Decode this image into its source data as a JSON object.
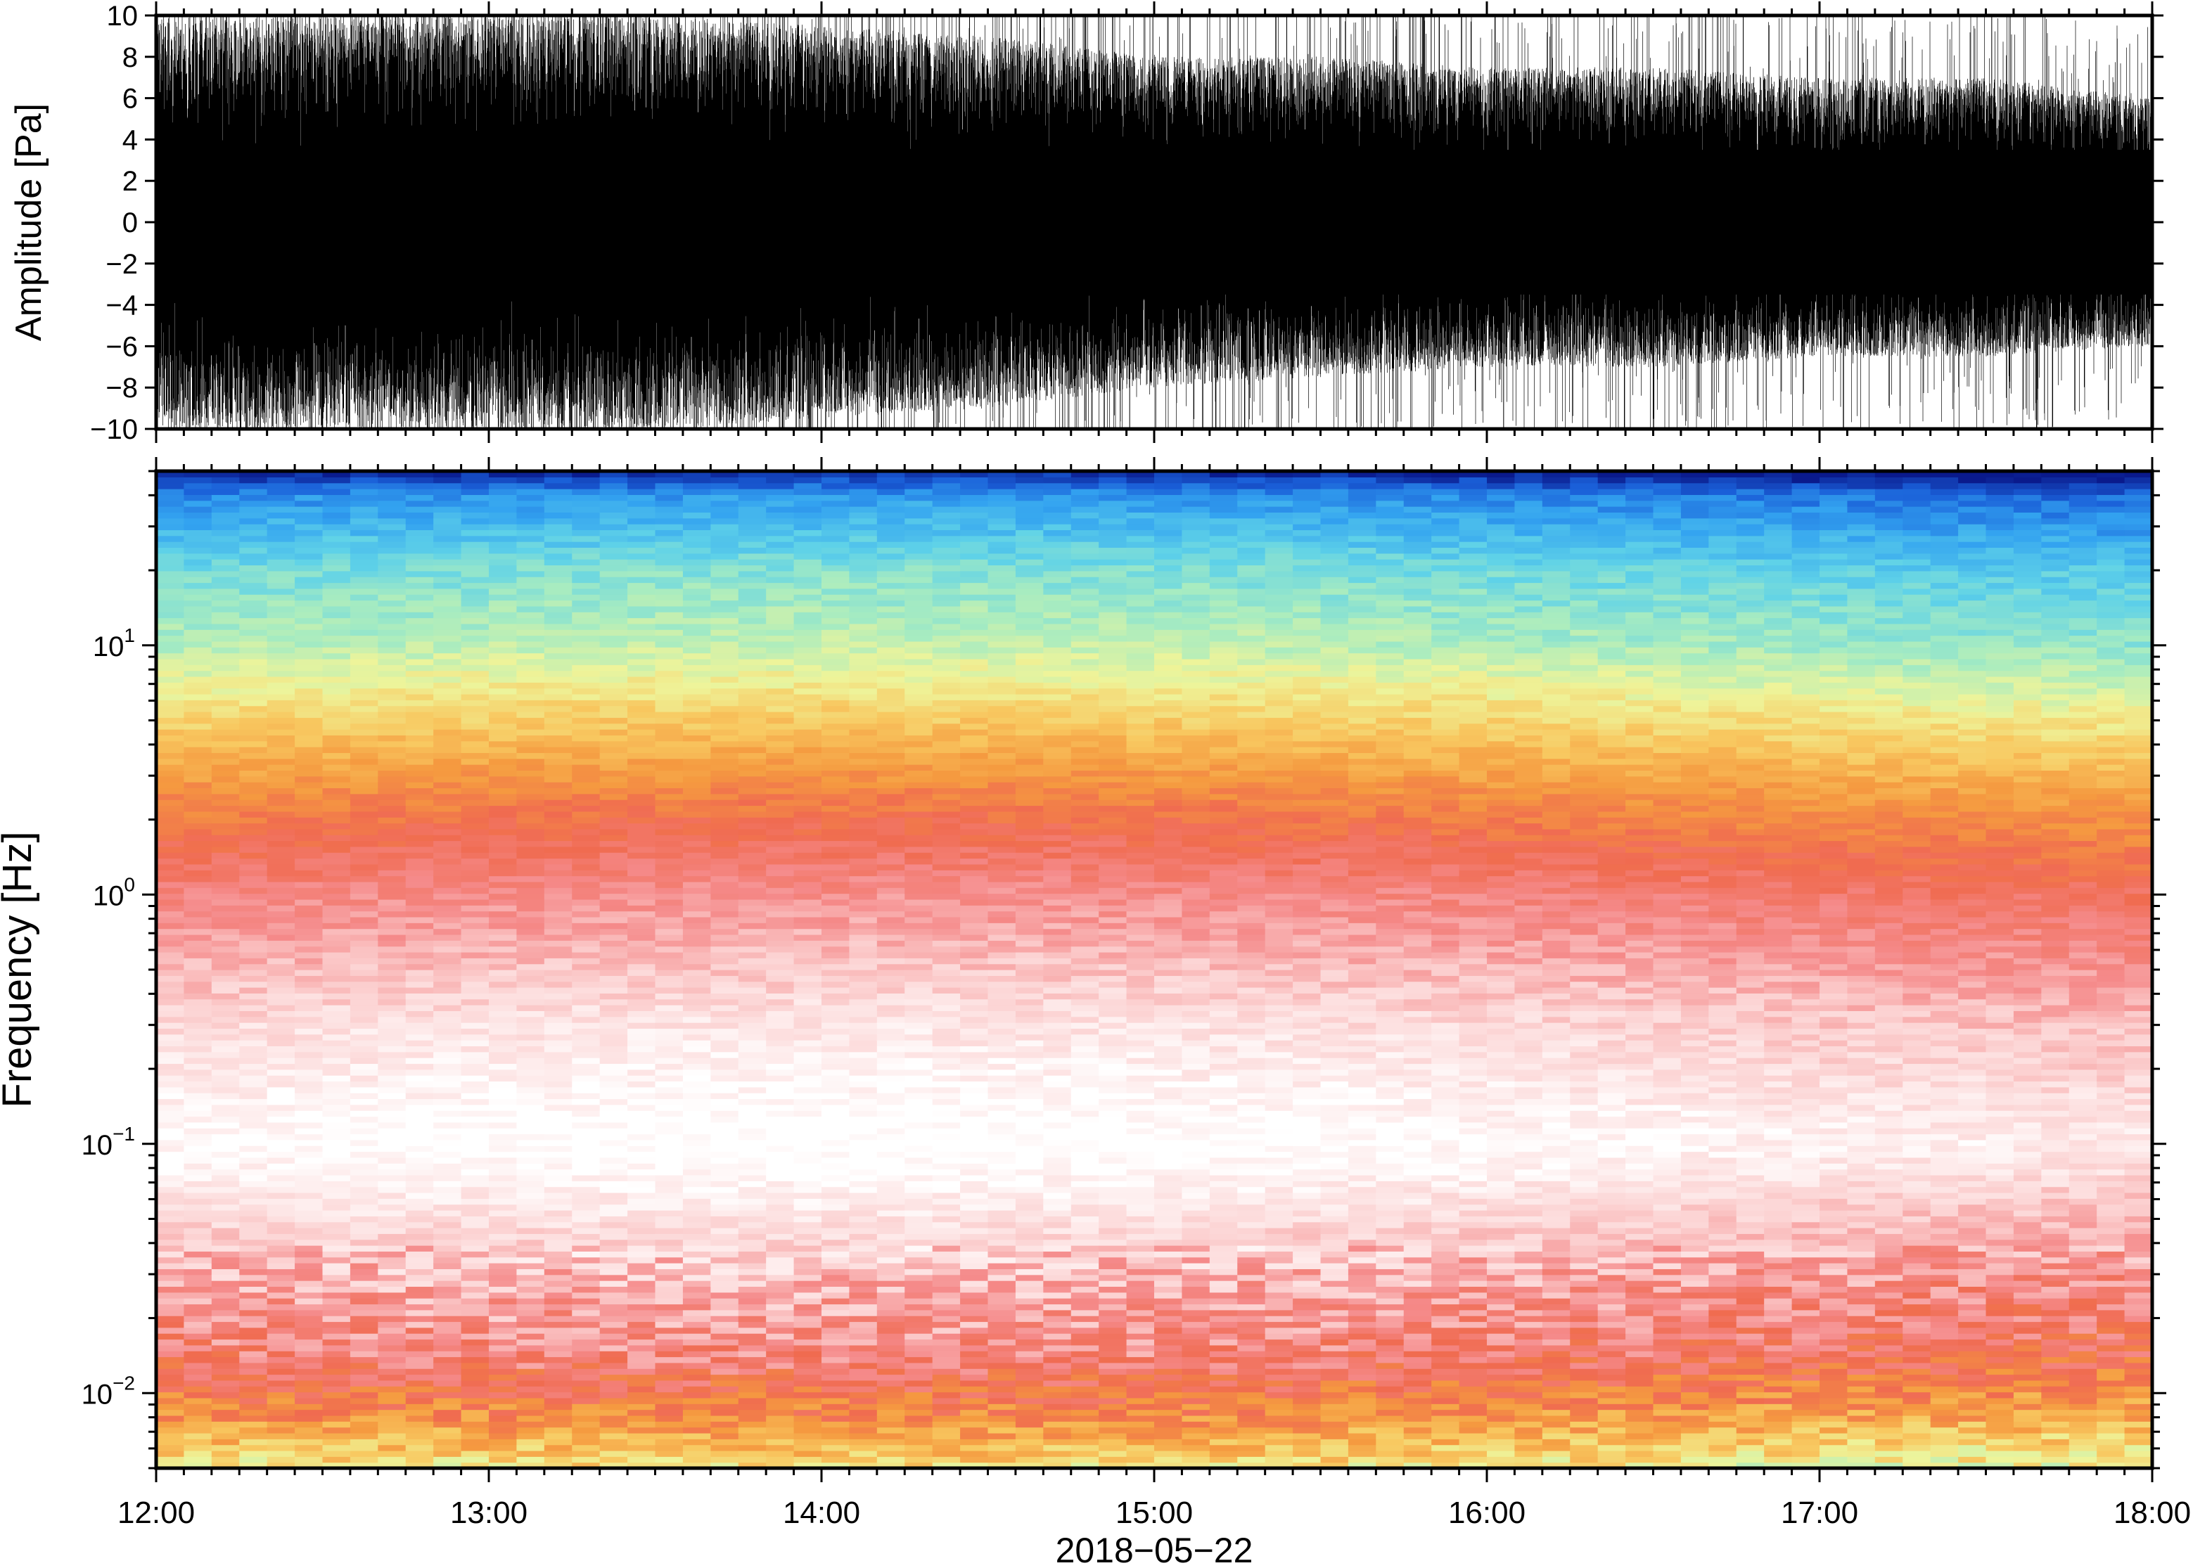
{
  "chart_data": [
    {
      "type": "line",
      "ylabel": "Amplitude [Pa]",
      "ylim": [
        -10,
        10
      ],
      "yticks": [
        -10,
        -8,
        -6,
        -4,
        -2,
        0,
        2,
        4,
        6,
        8,
        10
      ],
      "ytick_labels": [
        "−10",
        "−8",
        "−6",
        "−4",
        "−2",
        "0",
        "2",
        "4",
        "6",
        "8",
        "10"
      ],
      "xlim": [
        "12:00",
        "18:00"
      ],
      "series": [
        {
          "color": "#000000",
          "x": [
            "12:00",
            "12:30",
            "13:00",
            "13:30",
            "14:00",
            "14:30",
            "15:00",
            "15:30",
            "16:00",
            "16:30",
            "17:00",
            "17:30",
            "18:00"
          ],
          "envelope_upper": [
            10,
            10,
            10,
            10,
            9.5,
            9,
            8,
            8,
            7.5,
            7.5,
            7,
            7,
            6
          ],
          "envelope_lower": [
            -10,
            -10,
            -10,
            -10,
            -9.5,
            -9,
            -8,
            -7.5,
            -7,
            -7,
            -6.5,
            -6.5,
            -6
          ],
          "dense_band": [
            -3.5,
            3.5
          ]
        }
      ]
    },
    {
      "type": "heatmap",
      "ylabel": "Frequency [Hz]",
      "yscale": "log",
      "ylim": [
        0.005,
        50
      ],
      "ytick_labels": [
        {
          "base": "10",
          "exp": "−2",
          "value": 0.01
        },
        {
          "base": "10",
          "exp": "−1",
          "value": 0.1
        },
        {
          "base": "10",
          "exp": "0",
          "value": 1
        },
        {
          "base": "10",
          "exp": "1",
          "value": 10
        }
      ],
      "xlim": [
        "12:00",
        "18:00"
      ],
      "colormap": [
        "#0a1a8c",
        "#1a5fd8",
        "#33a3f0",
        "#5fd2e8",
        "#a8ecc0",
        "#eef49a",
        "#f8c860",
        "#f59a40",
        "#f06b50",
        "#f58a8a",
        "#fcd4d4",
        "#ffffff"
      ],
      "colorbar": "none",
      "description_of_power_by_frequency": [
        {
          "freq_hz": 45,
          "level": "dark blue"
        },
        {
          "freq_hz": 25,
          "level": "blue"
        },
        {
          "freq_hz": 10,
          "level": "cyan-green"
        },
        {
          "freq_hz": 5,
          "level": "yellow"
        },
        {
          "freq_hz": 2.5,
          "level": "orange"
        },
        {
          "freq_hz": 1.0,
          "level": "red"
        },
        {
          "freq_hz": 0.3,
          "level": "pink"
        },
        {
          "freq_hz": 0.1,
          "level": "white-pink"
        },
        {
          "freq_hz": 0.03,
          "level": "pink-red"
        },
        {
          "freq_hz": 0.015,
          "level": "red"
        },
        {
          "freq_hz": 0.007,
          "level": "orange-yellow"
        }
      ]
    }
  ],
  "xaxis": {
    "tick_labels": [
      "12:00",
      "13:00",
      "14:00",
      "15:00",
      "16:00",
      "17:00",
      "18:00"
    ],
    "date_label": "2018−05−22"
  }
}
